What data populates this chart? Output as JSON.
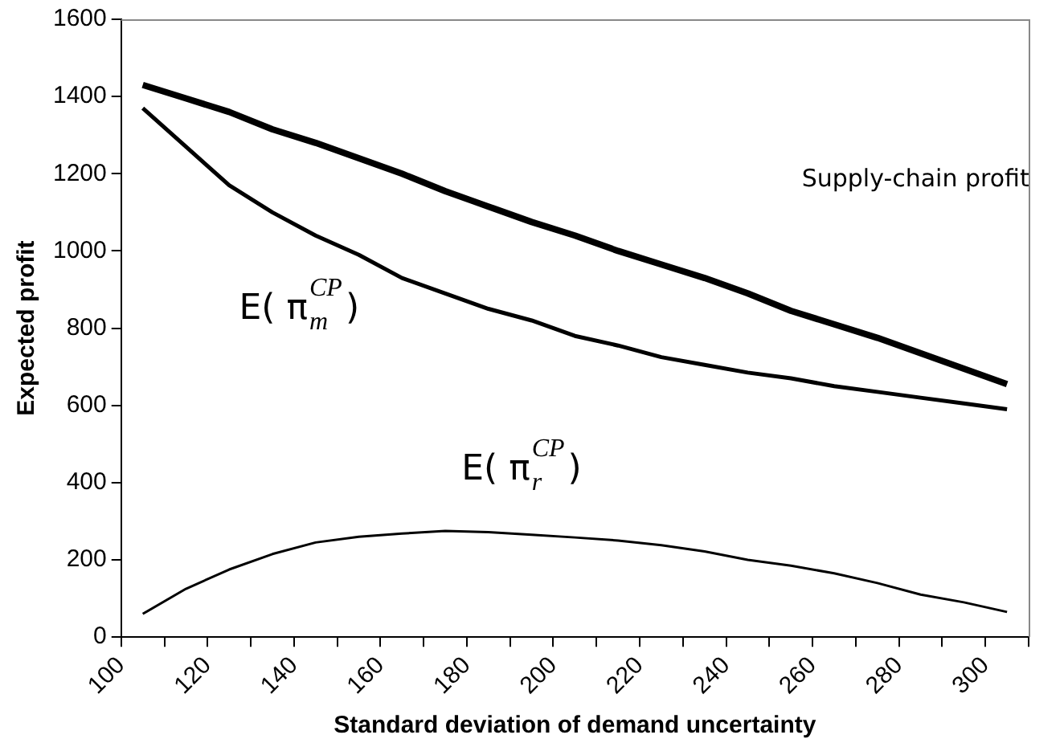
{
  "chart_data": {
    "type": "line",
    "xlabel": "Standard deviation of demand uncertainty",
    "ylabel": "Expected profit",
    "x": [
      105,
      115,
      125,
      135,
      145,
      155,
      165,
      175,
      185,
      195,
      205,
      215,
      225,
      235,
      245,
      255,
      265,
      275,
      285,
      295,
      305
    ],
    "xlim": [
      100,
      310
    ],
    "xticks": [
      100,
      {
        "value": 110,
        "label": null
      },
      120,
      {
        "value": 130,
        "label": null
      },
      140,
      {
        "value": 150,
        "label": null
      },
      160,
      {
        "value": 170,
        "label": null
      },
      180,
      {
        "value": 190,
        "label": null
      },
      200,
      {
        "value": 210,
        "label": null
      },
      220,
      {
        "value": 230,
        "label": null
      },
      240,
      {
        "value": 250,
        "label": null
      },
      260,
      {
        "value": 270,
        "label": null
      },
      280,
      {
        "value": 290,
        "label": null
      },
      300,
      {
        "value": 310,
        "label": null
      }
    ],
    "series": [
      {
        "color": "#000000",
        "values": [
          1430,
          1395,
          1360,
          1315,
          1280,
          1240,
          1200,
          1155,
          1115,
          1075,
          1040,
          1000,
          965,
          930,
          890,
          845,
          810,
          775,
          735,
          695,
          655
        ]
      },
      {
        "color": "#000000",
        "values": [
          1370,
          1270,
          1170,
          1100,
          1040,
          990,
          930,
          890,
          850,
          820,
          780,
          755,
          725,
          705,
          685,
          670,
          650,
          635,
          620,
          605,
          590
        ]
      },
      {
        "color": "#000000",
        "values": [
          60,
          125,
          175,
          215,
          245,
          260,
          268,
          275,
          272,
          265,
          258,
          250,
          238,
          222,
          200,
          185,
          165,
          140,
          110,
          90,
          65
        ]
      }
    ],
    "ylim": [
      0,
      1600
    ],
    "yticks": [
      0,
      200,
      400,
      600,
      800,
      1000,
      1200,
      1400,
      1600
    ],
    "grid": false,
    "legend": false,
    "marker": "none",
    "line_style": "solid",
    "annotations": [
      "Supply-chain profit",
      "E( π$_{m}$$^{CP}$)",
      "E( π$_{r}$$^{CP}$)"
    ]
  }
}
